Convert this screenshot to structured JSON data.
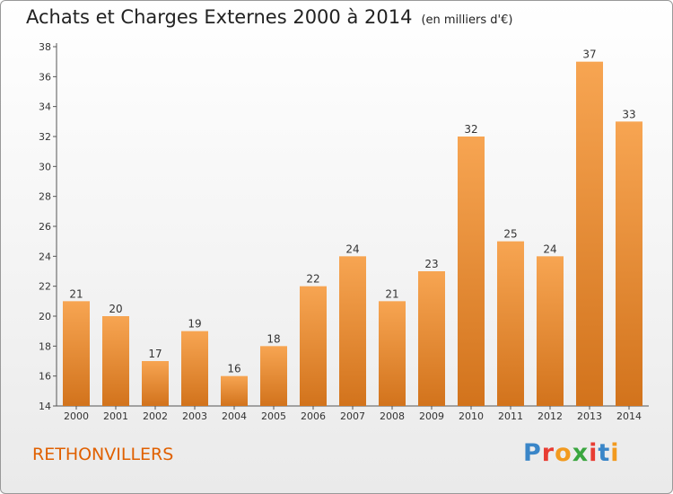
{
  "header": {
    "title": "Achats et Charges Externes 2000 à 2014",
    "unit": "(en milliers d'€)"
  },
  "footer": {
    "commune": "RETHONVILLERS",
    "logo_letters": [
      "P",
      "r",
      "o",
      "x",
      "i",
      "t",
      "i"
    ]
  },
  "colors": {
    "bar_light": "#f7a552",
    "bar_dark": "#d2731c",
    "commune_text": "#e06000",
    "logo": [
      "#3a86c8",
      "#e83d33",
      "#f29a1f",
      "#3aa63f",
      "#e83d33",
      "#3a86c8",
      "#f29a1f"
    ]
  },
  "chart_data": {
    "type": "bar",
    "title": "Achats et Charges Externes 2000 à 2014",
    "subtitle": "(en milliers d'€)",
    "categories": [
      "2000",
      "2001",
      "2002",
      "2003",
      "2004",
      "2005",
      "2006",
      "2007",
      "2008",
      "2009",
      "2010",
      "2011",
      "2012",
      "2013",
      "2014"
    ],
    "values": [
      21,
      20,
      17,
      19,
      16,
      18,
      22,
      24,
      21,
      23,
      32,
      25,
      24,
      37,
      33
    ],
    "ylim": [
      14,
      38
    ],
    "yticks": [
      14,
      16,
      18,
      20,
      22,
      24,
      26,
      28,
      30,
      32,
      34,
      36,
      38
    ],
    "grid": false,
    "legend": "none"
  }
}
